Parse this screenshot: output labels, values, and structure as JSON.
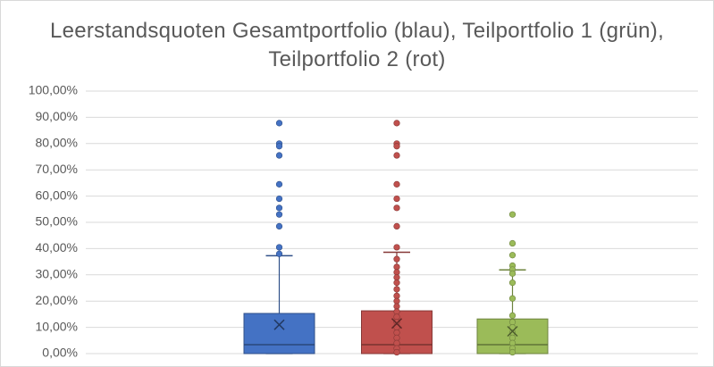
{
  "chart_data": {
    "type": "box",
    "title": "Leerstandsquoten  Gesamtportfolio (blau), Teilportfolio 1 (grün), Teilportfolio 2 (rot)",
    "ylim": [
      0,
      100
    ],
    "yticks": [
      {
        "value": 0,
        "label": "0,00%"
      },
      {
        "value": 10,
        "label": "10,00%"
      },
      {
        "value": 20,
        "label": "20,00%"
      },
      {
        "value": 30,
        "label": "30,00%"
      },
      {
        "value": 40,
        "label": "40,00%"
      },
      {
        "value": 50,
        "label": "50,00%"
      },
      {
        "value": 60,
        "label": "60,00%"
      },
      {
        "value": 70,
        "label": "70,00%"
      },
      {
        "value": 80,
        "label": "80,00%"
      },
      {
        "value": 90,
        "label": "90,00%"
      },
      {
        "value": 100,
        "label": "100,00%"
      }
    ],
    "grid": true,
    "series": [
      {
        "color": "#4472c4",
        "min": 0,
        "q1": 0,
        "median": 3.4,
        "q3": 15.3,
        "max": 37.3,
        "mean": 11,
        "points": [
          87.8,
          80,
          79,
          75.5,
          64.5,
          59,
          55.5,
          53,
          48.5,
          40.5,
          38
        ]
      },
      {
        "color": "#c0504d",
        "min": 0,
        "q1": 0,
        "median": 3.4,
        "q3": 16.3,
        "max": 38.6,
        "mean": 11.5,
        "points": [
          87.8,
          80,
          79,
          75.5,
          64.5,
          59,
          55.5,
          48.5,
          40.5,
          36,
          33,
          31,
          29,
          27,
          24.5,
          22,
          20,
          18,
          16,
          14,
          12,
          10,
          8,
          6,
          4,
          2,
          0.5
        ]
      },
      {
        "color": "#9bbb59",
        "min": 0,
        "q1": 0,
        "median": 3.4,
        "q3": 13.2,
        "max": 31.9,
        "mean": 8.5,
        "points": [
          53,
          42,
          37.5,
          33.5,
          32,
          30.5,
          27,
          21,
          14.5,
          12,
          10,
          8,
          6,
          4,
          2,
          0.5
        ]
      }
    ]
  }
}
